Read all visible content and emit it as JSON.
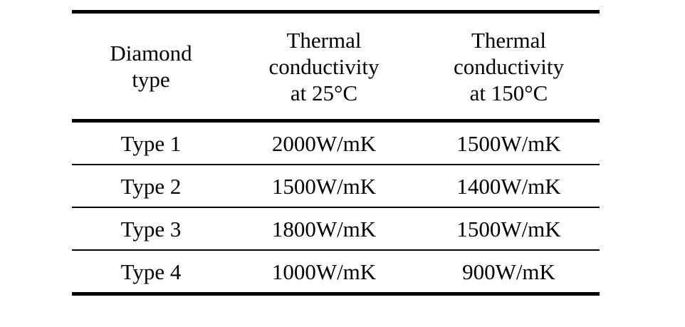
{
  "table": {
    "headers": [
      "Diamond\ntype",
      "Thermal\nconductivity\nat 25°C",
      "Thermal\nconductivity\nat 150°C"
    ],
    "rows": [
      [
        "Type 1",
        "2000W/mK",
        "1500W/mK"
      ],
      [
        "Type 2",
        "1500W/mK",
        "1400W/mK"
      ],
      [
        "Type 3",
        "1800W/mK",
        "1500W/mK"
      ],
      [
        "Type 4",
        "1000W/mK",
        "900W/mK"
      ]
    ]
  }
}
